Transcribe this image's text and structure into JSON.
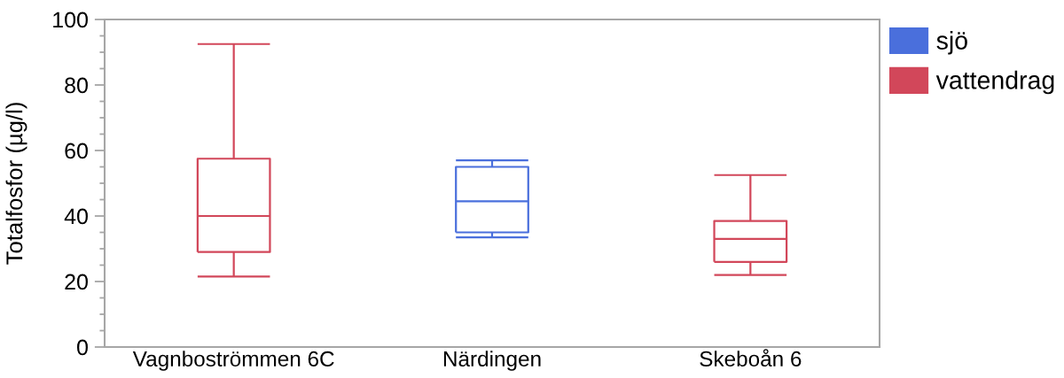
{
  "chart_data": {
    "type": "box",
    "ylabel": "Totalfosfor (µg/l)",
    "categories": [
      "Vagnboströmmen 6C",
      "Närdingen",
      "Skeboån 6"
    ],
    "series": [
      {
        "name": "sjö",
        "color": "#4a6fdc",
        "boxes": [
          null,
          {
            "low": 33.5,
            "q1": 35,
            "median": 44.5,
            "q3": 55,
            "high": 57
          },
          null
        ]
      },
      {
        "name": "vattendrag",
        "color": "#d2475a",
        "boxes": [
          {
            "low": 21.5,
            "q1": 29,
            "median": 40,
            "q3": 57.5,
            "high": 92.5
          },
          null,
          {
            "low": 22,
            "q1": 26,
            "median": 33,
            "q3": 38.5,
            "high": 52.5
          }
        ]
      }
    ],
    "ylim": [
      0,
      100
    ],
    "yticks": [
      0,
      {
        "value": 5,
        "label": null
      },
      {
        "value": 10,
        "label": null
      },
      {
        "value": 15,
        "label": null
      },
      20,
      {
        "value": 25,
        "label": null
      },
      {
        "value": 30,
        "label": null
      },
      {
        "value": 35,
        "label": null
      },
      40,
      {
        "value": 45,
        "label": null
      },
      {
        "value": 50,
        "label": null
      },
      {
        "value": 55,
        "label": null
      },
      60,
      {
        "value": 65,
        "label": null
      },
      {
        "value": 70,
        "label": null
      },
      {
        "value": 75,
        "label": null
      },
      80,
      {
        "value": 85,
        "label": null
      },
      {
        "value": 90,
        "label": null
      },
      {
        "value": 95,
        "label": null
      },
      100
    ],
    "legend": "top right"
  }
}
